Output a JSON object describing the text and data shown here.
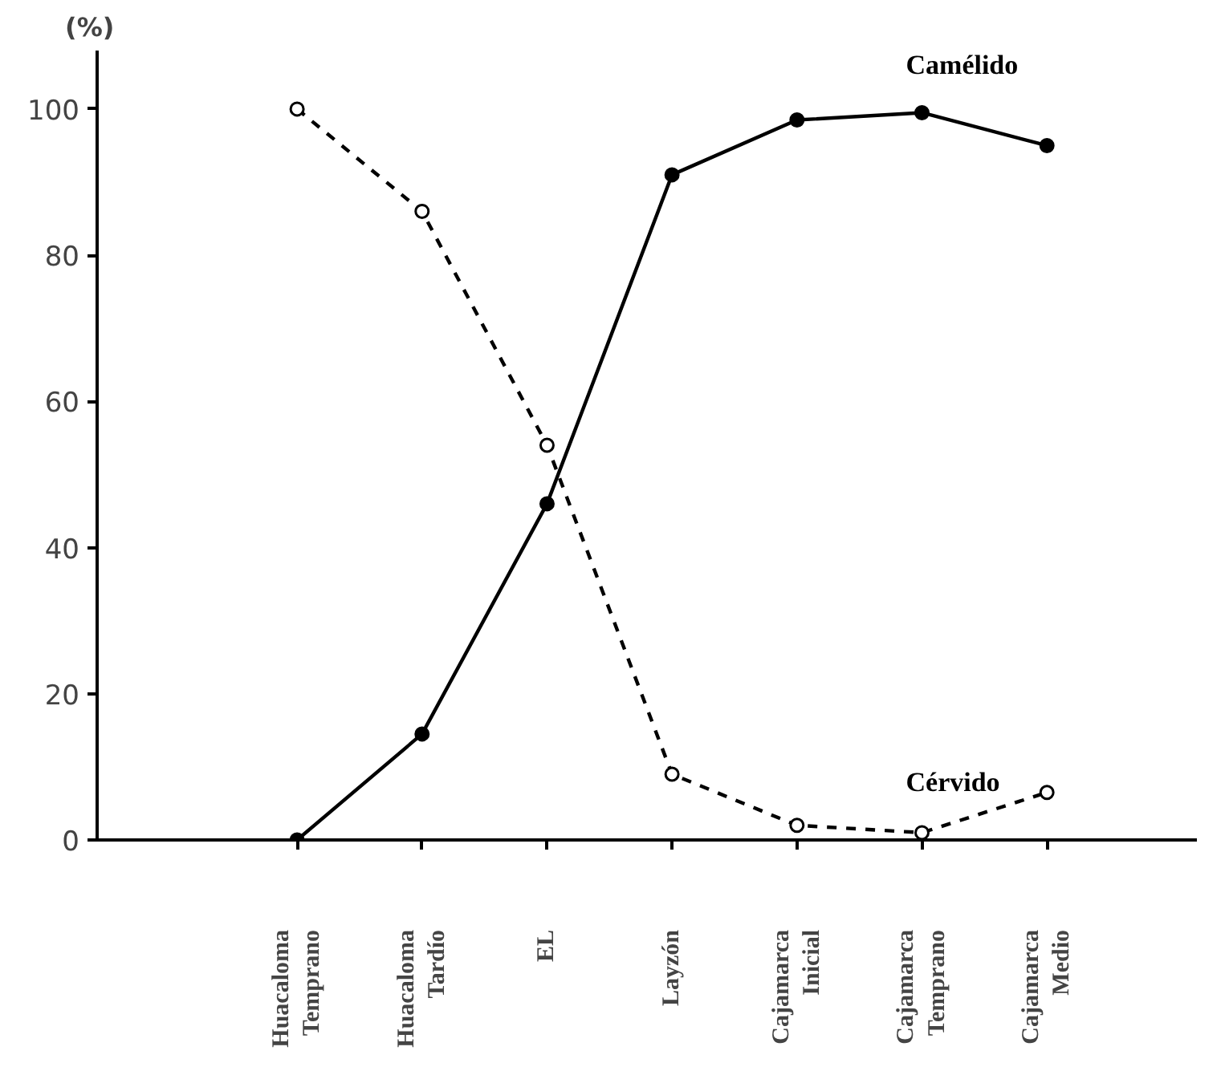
{
  "chart_data": {
    "type": "line",
    "ylabel": "(%)",
    "categories": [
      "Huacaloma\nTemprano",
      "Huacaloma\nTardío",
      "EL",
      "Layzón",
      "Cajamarca\nInicial",
      "Cajamarca\nTemprano",
      "Cajamarca\nMedio"
    ],
    "series": [
      {
        "name": "Camélido",
        "color": "#000000",
        "line_style": "solid",
        "values": [
          0,
          14.5,
          46,
          91,
          98.5,
          99.5,
          95
        ]
      },
      {
        "name": "Cérvido",
        "color": "#000000",
        "line_style": "dashed",
        "values": [
          100,
          86,
          54,
          9,
          2,
          1,
          6.5
        ]
      }
    ],
    "ylim": [
      0,
      108
    ],
    "yticks": [
      0,
      20,
      40,
      60,
      80,
      100
    ],
    "marker": "circle",
    "grid": false
  }
}
